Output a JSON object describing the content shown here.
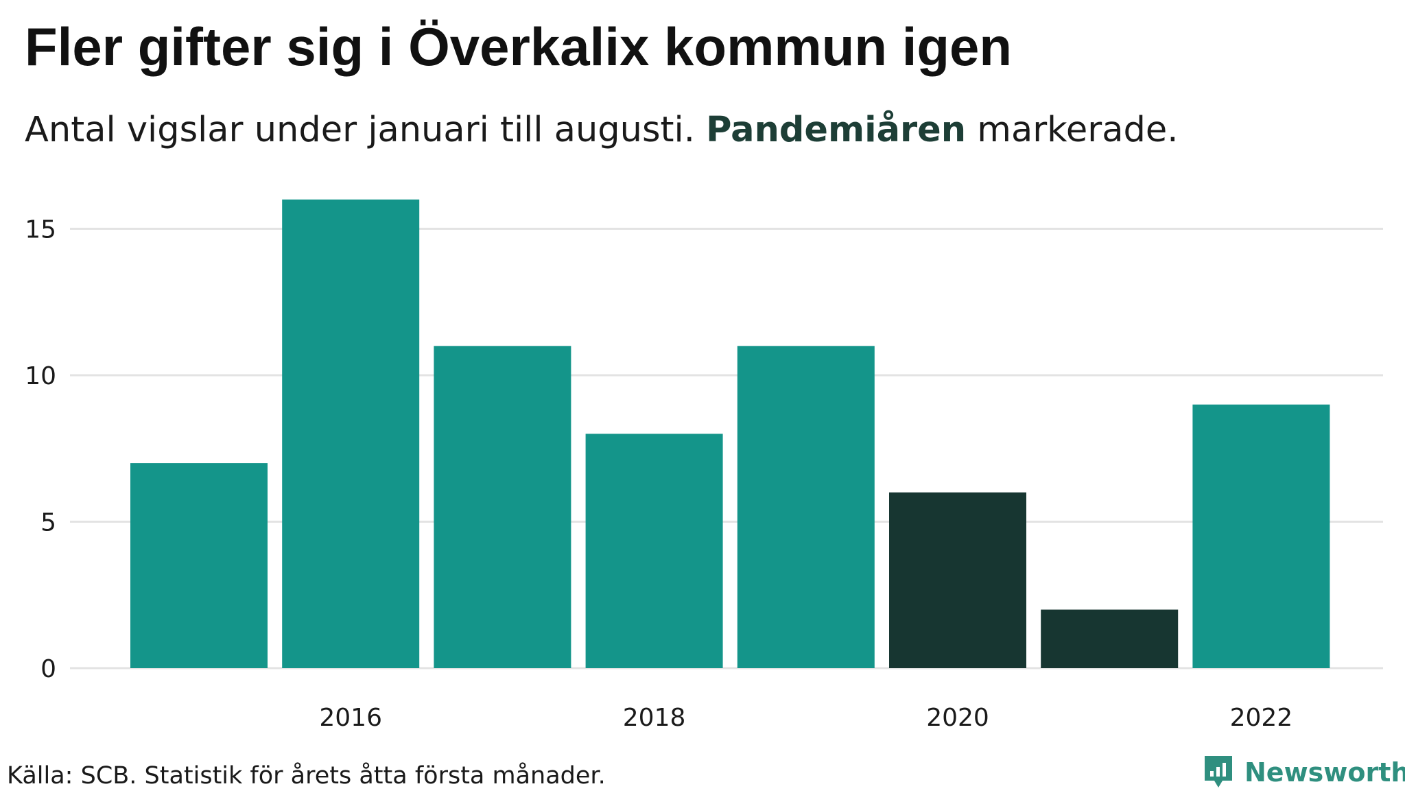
{
  "title": "Fler gifter sig i Överkalix kommun igen",
  "subtitle": {
    "before": "Antal vigslar under januari till augusti. ",
    "highlight": "Pandemiåren",
    "after": " markerade."
  },
  "source": "Källa: SCB. Statistik för årets åtta första månader.",
  "logo": {
    "text": "Newsworthy",
    "icon": "newsworthy-logo-icon"
  },
  "colors": {
    "normal": "#14958a",
    "pandemic": "#173631",
    "grid": "#e3e3e3",
    "brand": "#2f8f7f"
  },
  "chart_data": {
    "type": "bar",
    "title": "Fler gifter sig i Överkalix kommun igen",
    "subtitle": "Antal vigslar under januari till augusti. Pandemiåren markerade.",
    "xlabel": "",
    "ylabel": "",
    "categories": [
      "2015",
      "2016",
      "2017",
      "2018",
      "2019",
      "2020",
      "2021",
      "2022"
    ],
    "values": [
      7,
      16,
      11,
      8,
      11,
      6,
      2,
      9
    ],
    "highlighted": [
      "2020",
      "2021"
    ],
    "highlight_label": "Pandemiåren",
    "x_tick_labels": [
      "2016",
      "2018",
      "2020",
      "2022"
    ],
    "y_ticks": [
      0,
      5,
      10,
      15
    ],
    "ylim": [
      0,
      16
    ],
    "grid": true,
    "legend": "none"
  }
}
